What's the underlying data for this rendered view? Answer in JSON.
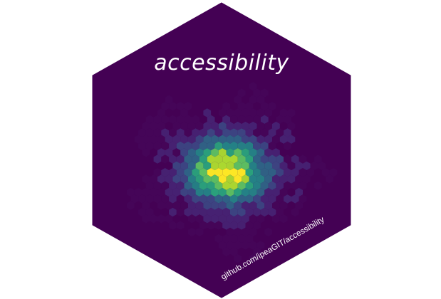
{
  "sticker": {
    "title": "accessibility",
    "url": "github.com/ipeaGIT/accessibility",
    "colors": {
      "background": "#440154",
      "border": "#440154",
      "text": "#ffffff",
      "palette": [
        "#46075a",
        "#472a7a",
        "#3b528b",
        "#2c728e",
        "#21918c",
        "#28ae80",
        "#5ec962",
        "#addc30",
        "#fde725"
      ]
    }
  }
}
